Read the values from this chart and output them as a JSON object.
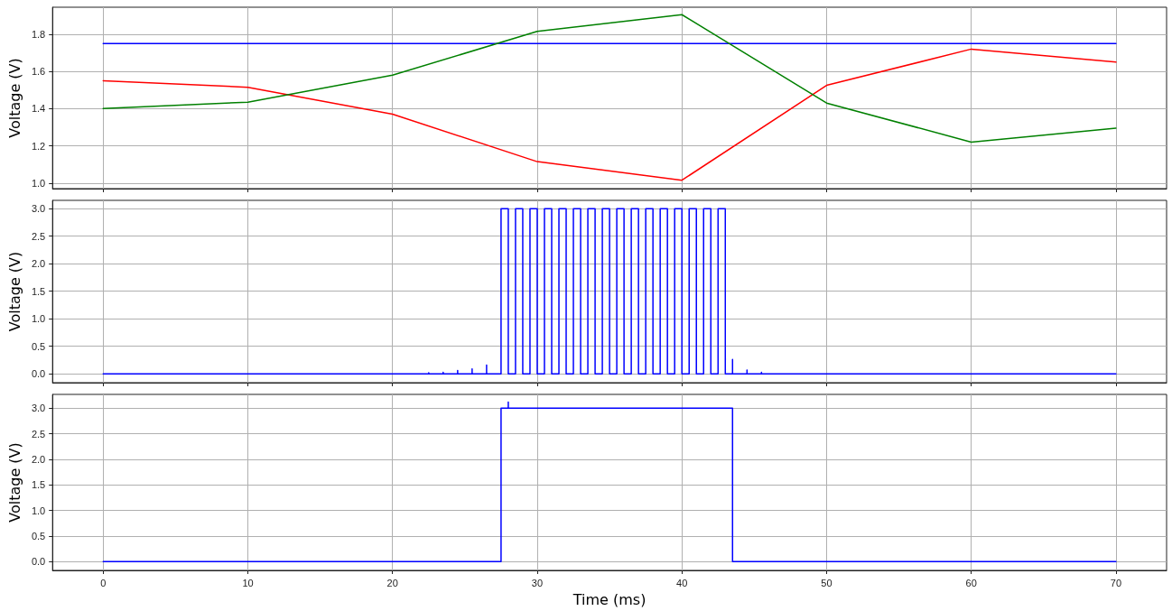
{
  "chart_data": [
    {
      "type": "line",
      "ylabel": "Voltage (V)",
      "x": [
        0,
        10,
        20,
        30,
        40,
        50,
        60,
        70
      ],
      "xlim": [
        -3.5,
        73.5
      ],
      "xticks": [
        0,
        10,
        20,
        30,
        40,
        50,
        60,
        70
      ],
      "ylim": [
        0.97,
        1.945
      ],
      "yticks": [
        {
          "value": 1,
          "label": "1.0"
        },
        1.2,
        1.4,
        1.6,
        1.8
      ],
      "grid": true,
      "tick_labels": "y",
      "marker": "none",
      "line_style": "solid",
      "series": [
        {
          "color": "#0000ff",
          "values": [
            1.75,
            1.75,
            1.75,
            1.75,
            1.75,
            1.75,
            1.75,
            1.75
          ]
        },
        {
          "color": "#ff0000",
          "values": [
            1.55,
            1.515,
            1.37,
            1.115,
            1.015,
            1.525,
            1.72,
            1.65
          ]
        },
        {
          "color": "#008000",
          "values": [
            1.4,
            1.435,
            1.58,
            1.815,
            1.905,
            1.43,
            1.22,
            1.295
          ]
        }
      ]
    },
    {
      "type": "line",
      "ylabel": "Voltage (V)",
      "xlim": [
        -3.5,
        73.5
      ],
      "xticks": [
        0,
        10,
        20,
        30,
        40,
        50,
        60,
        70
      ],
      "ylim": [
        -0.16,
        3.15
      ],
      "yticks": [
        {
          "value": 0,
          "label": "0.0"
        },
        0.5,
        {
          "value": 1,
          "label": "1.0"
        },
        1.5,
        {
          "value": 2,
          "label": "2.0"
        },
        2.5,
        {
          "value": 3,
          "label": "3.0"
        }
      ],
      "grid": true,
      "tick_labels": "y",
      "marker": "none",
      "line_style": "solid",
      "series": [
        {
          "color": "#0000ff",
          "x": [
            0,
            21.5,
            21.5,
            21.5,
            22.5,
            22.5,
            22.5,
            23.5,
            23.5,
            23.5,
            24.5,
            24.5,
            24.5,
            25.5,
            25.5,
            25.5,
            26.5,
            26.5,
            26.5,
            27.5,
            27.5,
            28,
            28,
            28.5,
            28.5,
            29,
            29,
            29.5,
            29.5,
            30,
            30,
            30.5,
            30.5,
            31,
            31,
            31.5,
            31.5,
            32,
            32,
            32.5,
            32.5,
            33,
            33,
            33.5,
            33.5,
            34,
            34,
            34.5,
            34.5,
            35,
            35,
            35.5,
            35.5,
            36,
            36,
            36.5,
            36.5,
            37,
            37,
            37.5,
            37.5,
            38,
            38,
            38.5,
            38.5,
            39,
            39,
            39.5,
            39.5,
            40,
            40,
            40.5,
            40.5,
            41,
            41,
            41.5,
            41.5,
            42,
            42,
            42.5,
            42.5,
            43,
            43,
            43.5,
            43.5,
            43.5,
            44.5,
            44.5,
            44.5,
            45.5,
            45.5,
            45.5,
            46.5,
            46.5,
            46.5,
            70
          ],
          "values": [
            0,
            0,
            0.01,
            0,
            0,
            0.02,
            0,
            0,
            0.03,
            0,
            0,
            0.06,
            0,
            0,
            0.09,
            0,
            0,
            0.16,
            0,
            0,
            3,
            3,
            0,
            0,
            3,
            3,
            0,
            0,
            3,
            3,
            0,
            0,
            3,
            3,
            0,
            0,
            3,
            3,
            0,
            0,
            3,
            3,
            0,
            0,
            3,
            3,
            0,
            0,
            3,
            3,
            0,
            0,
            3,
            3,
            0,
            0,
            3,
            3,
            0,
            0,
            3,
            3,
            0,
            0,
            3,
            3,
            0,
            0,
            3,
            3,
            0,
            0,
            3,
            3,
            0,
            0,
            3,
            3,
            0,
            0,
            3,
            3,
            0,
            0,
            0.26,
            0,
            0,
            0.07,
            0,
            0,
            0.03,
            0,
            0,
            0.01,
            0,
            0
          ]
        }
      ]
    },
    {
      "type": "line",
      "ylabel": "Voltage (V)",
      "xlabel": "Time (ms)",
      "xlim": [
        -3.5,
        73.5
      ],
      "xticks": [
        0,
        10,
        20,
        30,
        40,
        50,
        60,
        70
      ],
      "ylim": [
        -0.17,
        3.27
      ],
      "yticks": [
        {
          "value": 0,
          "label": "0.0"
        },
        0.5,
        {
          "value": 1,
          "label": "1.0"
        },
        1.5,
        {
          "value": 2,
          "label": "2.0"
        },
        2.5,
        {
          "value": 3,
          "label": "3.0"
        }
      ],
      "grid": true,
      "marker": "none",
      "line_style": "solid",
      "series": [
        {
          "color": "#0000ff",
          "x": [
            0,
            27.5,
            27.5,
            28,
            28,
            28,
            43.5,
            43.5,
            70
          ],
          "values": [
            0,
            0,
            3,
            3,
            3.12,
            3,
            3,
            0,
            0
          ]
        }
      ]
    }
  ]
}
